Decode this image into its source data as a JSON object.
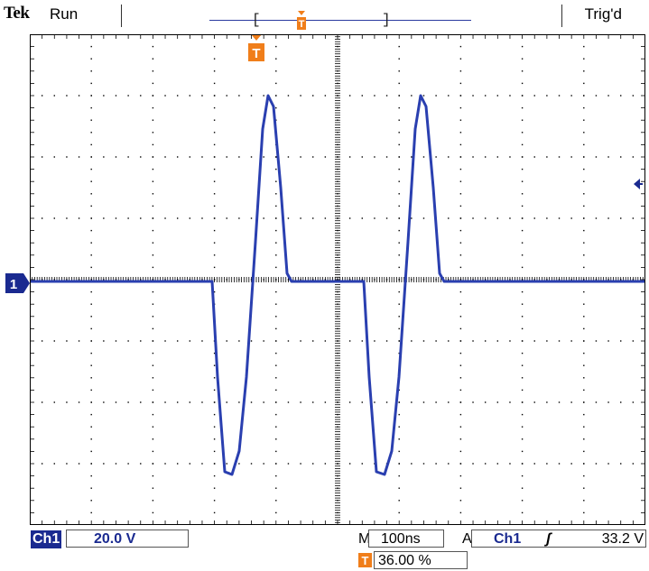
{
  "header": {
    "brand": "Tek",
    "status": "Run",
    "trigger_state": "Trig'd"
  },
  "markers": {
    "trigger_pos": "T",
    "channel": "1"
  },
  "footer": {
    "ch_label": "Ch1",
    "volts_per_div": "20.0 V",
    "m_label": "M",
    "time_per_div": "100ns",
    "a_label": "A",
    "trig_source": "Ch1",
    "trig_slope": "ʃ",
    "trig_level": "33.2 V",
    "t_label": "T",
    "trig_position": "36.00 %"
  },
  "colors": {
    "trace": "#2a3fb0",
    "accent": "#f07e1a",
    "grid": "#000000",
    "dark": "#1a2a90"
  }
}
